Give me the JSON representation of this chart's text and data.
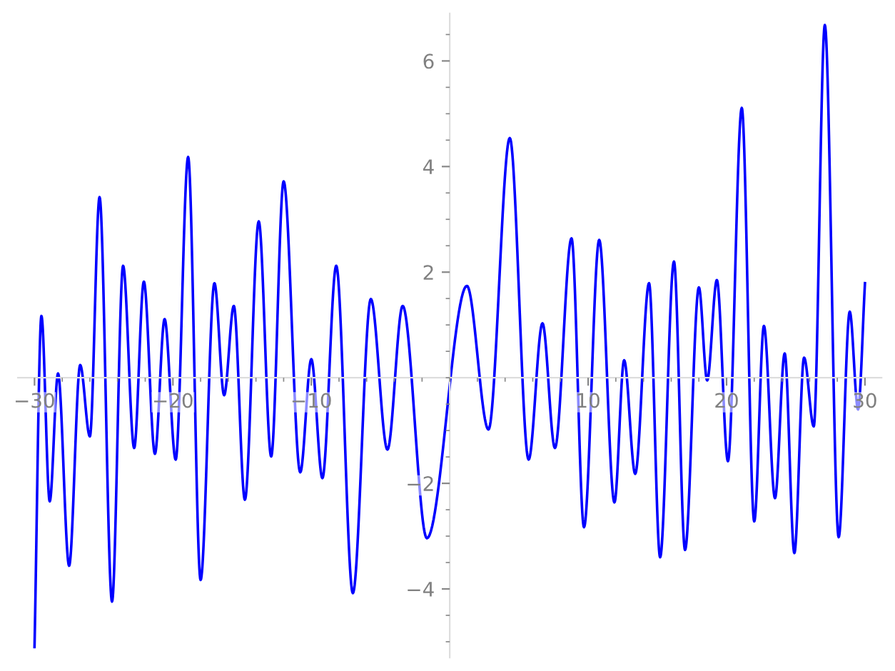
{
  "chart_data": {
    "type": "line",
    "xlim": [
      -31.2,
      31.2
    ],
    "ylim": [
      -5.3,
      6.9
    ],
    "xticks": [
      -30,
      -20,
      -10,
      10,
      20,
      30
    ],
    "yticks": [
      -4,
      -2,
      2,
      4,
      6
    ],
    "grid": false,
    "legend": false,
    "marker": "none",
    "line_style": "solid",
    "series": [
      {
        "color": "#0000ff",
        "x": [
          -30.0,
          -29.5,
          -28.9,
          -28.3,
          -27.5,
          -26.7,
          -26.0,
          -25.3,
          -24.4,
          -23.6,
          -22.8,
          -22.1,
          -21.3,
          -20.6,
          -19.8,
          -18.9,
          -18.0,
          -17.0,
          -16.3,
          -15.6,
          -14.8,
          -13.8,
          -12.9,
          -12.0,
          -10.8,
          -10.0,
          -9.2,
          -8.2,
          -7.0,
          -5.7,
          -4.5,
          -3.4,
          -1.65,
          1.24,
          2.8,
          4.34,
          5.7,
          6.7,
          7.6,
          8.8,
          9.7,
          10.8,
          11.9,
          12.6,
          13.4,
          14.4,
          15.2,
          16.2,
          17.0,
          18.0,
          18.6,
          19.3,
          20.1,
          21.1,
          22.0,
          22.7,
          23.5,
          24.2,
          24.9,
          25.6,
          26.3,
          27.1,
          28.1,
          28.9,
          29.5,
          30.0
        ],
        "values": [
          -5.1,
          1.17,
          -2.34,
          0.08,
          -3.56,
          0.24,
          -1.11,
          3.42,
          -4.24,
          2.12,
          -1.33,
          1.82,
          -1.44,
          1.11,
          -1.55,
          4.18,
          -3.83,
          1.79,
          -0.33,
          1.36,
          -2.31,
          2.96,
          -1.49,
          3.72,
          -1.79,
          0.35,
          -1.9,
          2.12,
          -4.08,
          1.49,
          -1.36,
          1.36,
          -3.04,
          1.74,
          -0.98,
          4.54,
          -1.55,
          1.03,
          -1.33,
          2.64,
          -2.83,
          2.61,
          -2.36,
          0.33,
          -1.82,
          1.79,
          -3.4,
          2.2,
          -3.26,
          1.71,
          -0.05,
          1.85,
          -1.58,
          5.11,
          -2.72,
          0.98,
          -2.28,
          0.46,
          -3.32,
          0.38,
          -0.92,
          6.68,
          -3.02,
          1.25,
          -0.6,
          1.79
        ]
      }
    ]
  }
}
